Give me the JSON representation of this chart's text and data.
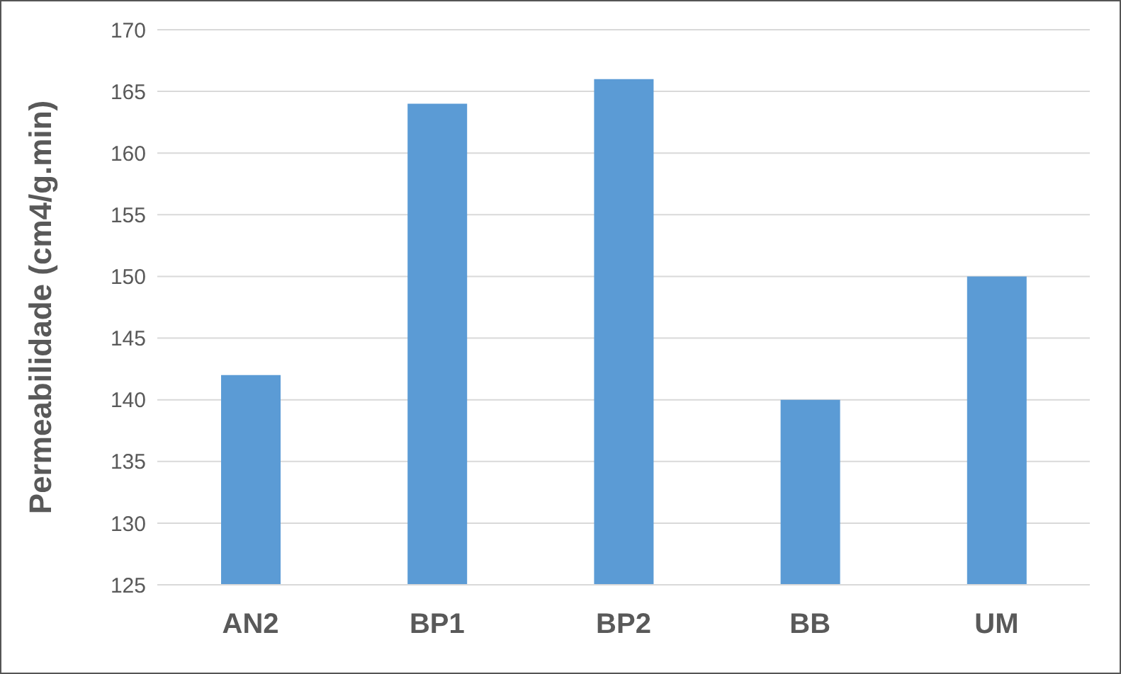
{
  "chart_data": {
    "type": "bar",
    "ylabel": "Permeabilidade (cm4/g.min)",
    "categories": [
      "AN2",
      "BP1",
      "BP2",
      "BB",
      "UM"
    ],
    "values": [
      142,
      164,
      166,
      140,
      150
    ],
    "color": "#5b9bd5",
    "ylim": [
      125,
      170
    ],
    "yticks": [
      125,
      130,
      135,
      140,
      145,
      150,
      155,
      160,
      165,
      170
    ],
    "grid": "y"
  }
}
